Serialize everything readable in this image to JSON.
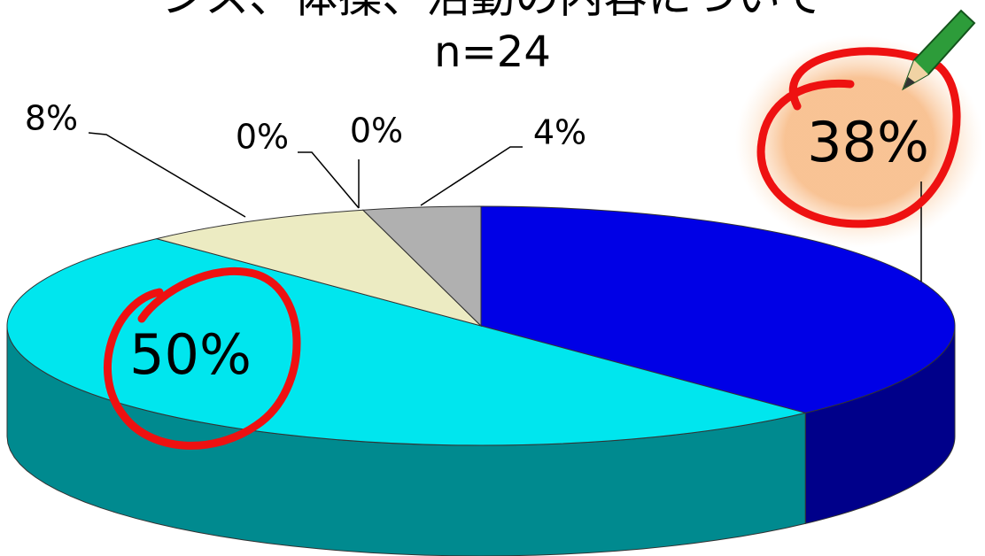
{
  "chart_data": {
    "type": "pie",
    "title": "ンス、体操、活動の内容について",
    "subtitle": "n=24",
    "categories": [
      null,
      null,
      null,
      null,
      null,
      null
    ],
    "values": [
      38,
      50,
      8,
      0,
      0,
      4
    ],
    "value_labels": [
      "38%",
      "50%",
      "8%",
      "0%",
      "0%",
      "4%"
    ],
    "colors": [
      "#0000e6",
      "#00e6ee",
      "#ecebc2",
      "#ffffff",
      "#ffffff",
      "#b0b0b0"
    ]
  }
}
